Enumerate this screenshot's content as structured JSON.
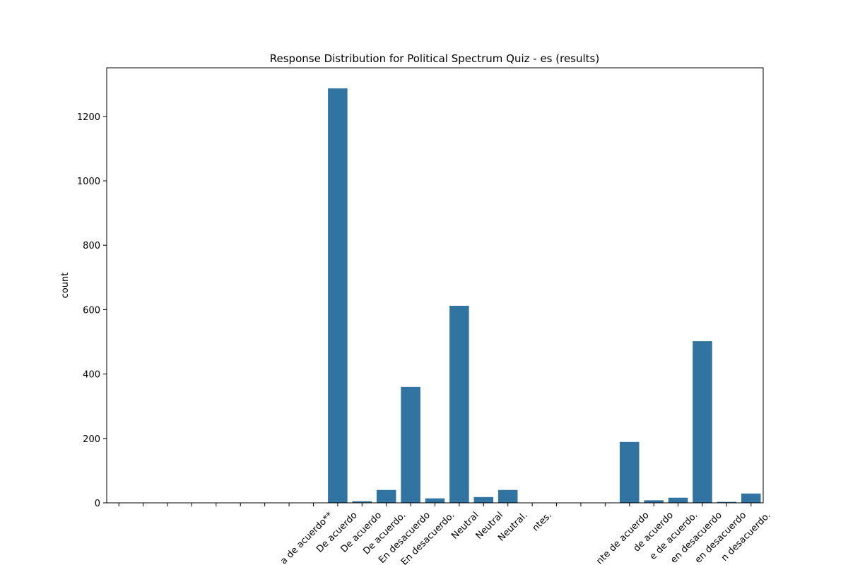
{
  "chart_data": {
    "type": "bar",
    "title": "Response Distribution for Political Spectrum Quiz - es (results)",
    "y_label": "count",
    "categories": [
      null,
      null,
      null,
      null,
      null,
      null,
      null,
      null,
      "a de acuerdo**",
      "De acuerdo",
      "De acuerdo",
      "De acuerdo.",
      "En desacuerdo",
      "En desacuerdo.",
      "Neutral",
      "Neutral",
      "Neutral.",
      "ntes.",
      null,
      null,
      null,
      "nte de acuerdo",
      "de acuerdo",
      "e de acuerdo.",
      "en desacuerdo",
      "en desacuerdo",
      "n desacuerdo."
    ],
    "values": [
      0,
      0,
      0,
      0,
      0,
      0,
      0,
      0,
      0,
      1287,
      5,
      40,
      360,
      14,
      612,
      18,
      40,
      0,
      0,
      0,
      0,
      189,
      8,
      16,
      502,
      3,
      29
    ],
    "color": "#3274a1",
    "ylim": [
      0,
      1351
    ],
    "yticks": [
      0,
      200,
      400,
      600,
      800,
      1000,
      1200
    ],
    "grid": false
  }
}
